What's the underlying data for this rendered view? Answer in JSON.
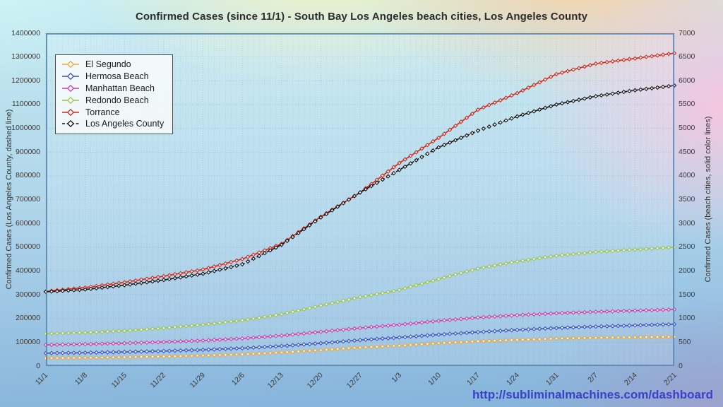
{
  "footer": {
    "url": "http://subliminalmachines.com/dashboard",
    "color": "#3a41cc"
  },
  "chart_data": {
    "type": "line",
    "title": "Confirmed Cases (since 11/1) - South Bay Los Angeles beach cities, Los Angeles County",
    "grid": true,
    "legend_position": "top-left",
    "markers": "open-diamond",
    "x_tick_labels": [
      "11/1",
      "11/8",
      "11/15",
      "11/22",
      "11/29",
      "12/6",
      "12/13",
      "12/20",
      "12/27",
      "1/3",
      "1/10",
      "1/17",
      "1/24",
      "1/31",
      "2/7",
      "2/14",
      "2/21"
    ],
    "left_axis": {
      "label": "Confirmed Cases (Los Angeles County, dashed line)",
      "min": 0,
      "max": 1400000,
      "step": 100000,
      "tick_labels": [
        "0",
        "100000",
        "200000",
        "300000",
        "400000",
        "500000",
        "600000",
        "700000",
        "800000",
        "900000",
        "1000000",
        "1100000",
        "1200000",
        "1300000",
        "1400000"
      ]
    },
    "right_axis": {
      "label": "Confirmed Cases (beach cities, solid color lines)",
      "min": 0,
      "max": 7000,
      "step": 500,
      "tick_labels": [
        "0",
        "500",
        "1000",
        "1500",
        "2000",
        "2500",
        "3000",
        "3500",
        "4000",
        "4500",
        "5000",
        "5500",
        "6000",
        "6500",
        "7000"
      ]
    },
    "series": [
      {
        "name": "El Segundo",
        "axis": "right",
        "color": "#eaa83f",
        "style": "solid",
        "values": [
          165,
          175,
          185,
          200,
          220,
          245,
          285,
          335,
          390,
          430,
          480,
          520,
          550,
          575,
          595,
          605,
          615
        ]
      },
      {
        "name": "Hermosa Beach",
        "axis": "right",
        "color": "#3950c8",
        "style": "solid",
        "values": [
          270,
          280,
          295,
          315,
          340,
          375,
          420,
          480,
          545,
          600,
          660,
          715,
          760,
          800,
          830,
          855,
          880
        ]
      },
      {
        "name": "Manhattan Beach",
        "axis": "right",
        "color": "#cf3cae",
        "style": "solid",
        "values": [
          445,
          460,
          480,
          505,
          535,
          580,
          640,
          720,
          800,
          870,
          950,
          1020,
          1070,
          1110,
          1140,
          1165,
          1190
        ]
      },
      {
        "name": "Redondo Beach",
        "axis": "right",
        "color": "#9cc353",
        "style": "solid",
        "values": [
          680,
          705,
          740,
          800,
          870,
          960,
          1090,
          1270,
          1450,
          1600,
          1830,
          2050,
          2200,
          2320,
          2400,
          2450,
          2500
        ]
      },
      {
        "name": "Torrance",
        "axis": "right",
        "color": "#d3281c",
        "style": "solid",
        "values": [
          1570,
          1650,
          1760,
          1890,
          2030,
          2250,
          2570,
          3140,
          3650,
          4270,
          4800,
          5390,
          5740,
          6140,
          6360,
          6470,
          6580
        ]
      },
      {
        "name": "Los Angeles County",
        "axis": "left",
        "color": "#151515",
        "style": "dashed",
        "values": [
          312000,
          322000,
          340000,
          362000,
          388000,
          428000,
          510000,
          625000,
          730000,
          825000,
          920000,
          990000,
          1050000,
          1100000,
          1135000,
          1160000,
          1180000
        ]
      }
    ]
  }
}
